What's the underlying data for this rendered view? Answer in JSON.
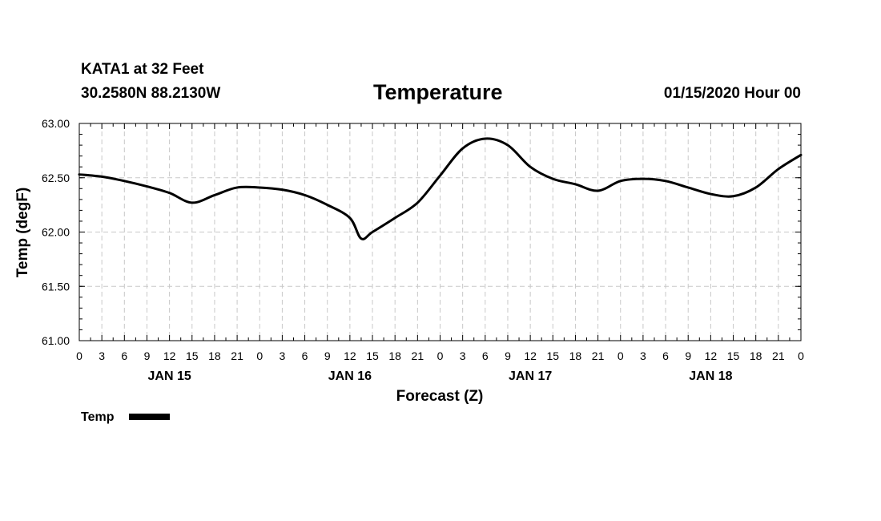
{
  "header": {
    "station": "KATA1 at 32 Feet",
    "coords": "30.2580N 88.2130W",
    "title": "Temperature",
    "run": "01/15/2020 Hour 00"
  },
  "chart_data": {
    "type": "line",
    "title": "Temperature",
    "xlabel": "Forecast (Z)",
    "ylabel": "Temp (degF)",
    "ylim": [
      61.0,
      63.0
    ],
    "y_ticks": [
      "61.00",
      "61.50",
      "62.00",
      "62.50",
      "63.00"
    ],
    "xlim": [
      0,
      96
    ],
    "x_unit": "forecast hour from 01/15/2020 00Z",
    "x_tick_labels": [
      "0",
      "3",
      "6",
      "9",
      "12",
      "15",
      "18",
      "21",
      "0",
      "3",
      "6",
      "9",
      "12",
      "15",
      "18",
      "21",
      "0",
      "3",
      "6",
      "9",
      "12",
      "15",
      "18",
      "21",
      "0",
      "3",
      "6",
      "9",
      "12",
      "15",
      "18",
      "21",
      "0"
    ],
    "day_labels": [
      {
        "label": "JAN 15",
        "hour": 12
      },
      {
        "label": "JAN 16",
        "hour": 36
      },
      {
        "label": "JAN 17",
        "hour": 60
      },
      {
        "label": "JAN 18",
        "hour": 84
      }
    ],
    "grid": true,
    "legend_position": "bottom-left",
    "series": [
      {
        "name": "Temp",
        "color": "#000000",
        "x": [
          0,
          3,
          6,
          9,
          12,
          15,
          18,
          21,
          24,
          27,
          30,
          33,
          36,
          37.5,
          39,
          42,
          45,
          48,
          51,
          54,
          57,
          60,
          63,
          66,
          69,
          72,
          75,
          78,
          81,
          84,
          87,
          90,
          93,
          96
        ],
        "y": [
          62.53,
          62.51,
          62.47,
          62.42,
          62.36,
          62.27,
          62.34,
          62.41,
          62.41,
          62.39,
          62.34,
          62.25,
          62.13,
          61.94,
          62.0,
          62.13,
          62.27,
          62.52,
          62.77,
          62.86,
          62.8,
          62.6,
          62.49,
          62.44,
          62.38,
          62.47,
          62.49,
          62.47,
          62.41,
          62.35,
          62.33,
          62.41,
          62.58,
          62.71
        ]
      }
    ]
  }
}
